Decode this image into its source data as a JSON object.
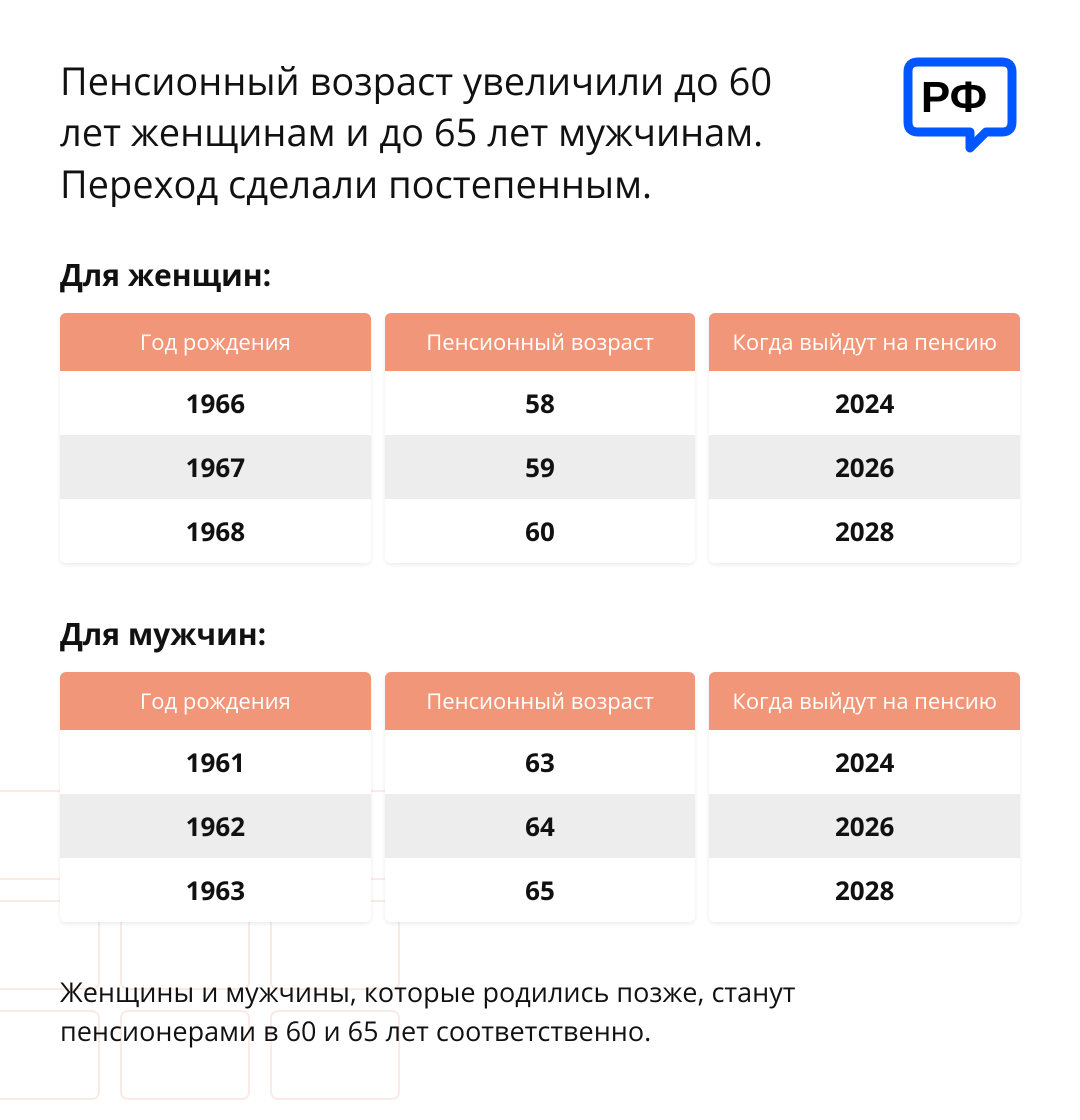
{
  "colors": {
    "header_bg": "#f19679",
    "header_text": "#ffffff",
    "row_odd_bg": "#ffffff",
    "row_even_bg": "#ededed",
    "cell_text": "#111111",
    "logo_stroke": "#0057ff",
    "logo_text": "#000000",
    "deco_border": "#f7d9cf"
  },
  "title": "Пенсионный возраст увеличили до 60 лет женщинам и до 65 лет мужчинам. Переход сделали постепенным.",
  "logo_text": "РФ",
  "columns": [
    "Год рождения",
    "Пенсионный возраст",
    "Когда выйдут на пенсию"
  ],
  "women": {
    "title": "Для женщин:",
    "rows": [
      [
        "1966",
        "58",
        "2024"
      ],
      [
        "1967",
        "59",
        "2026"
      ],
      [
        "1968",
        "60",
        "2028"
      ]
    ]
  },
  "men": {
    "title": "Для мужчин:",
    "rows": [
      [
        "1961",
        "63",
        "2024"
      ],
      [
        "1962",
        "64",
        "2026"
      ],
      [
        "1963",
        "65",
        "2028"
      ]
    ]
  },
  "footnote": "Женщины и мужчины, которые родились позже, станут пенсионерами в 60 и 65 лет соответственно.",
  "table_style": {
    "header_fontsize": 22,
    "cell_fontsize": 26,
    "col_gap": 14,
    "border_radius": 6
  }
}
